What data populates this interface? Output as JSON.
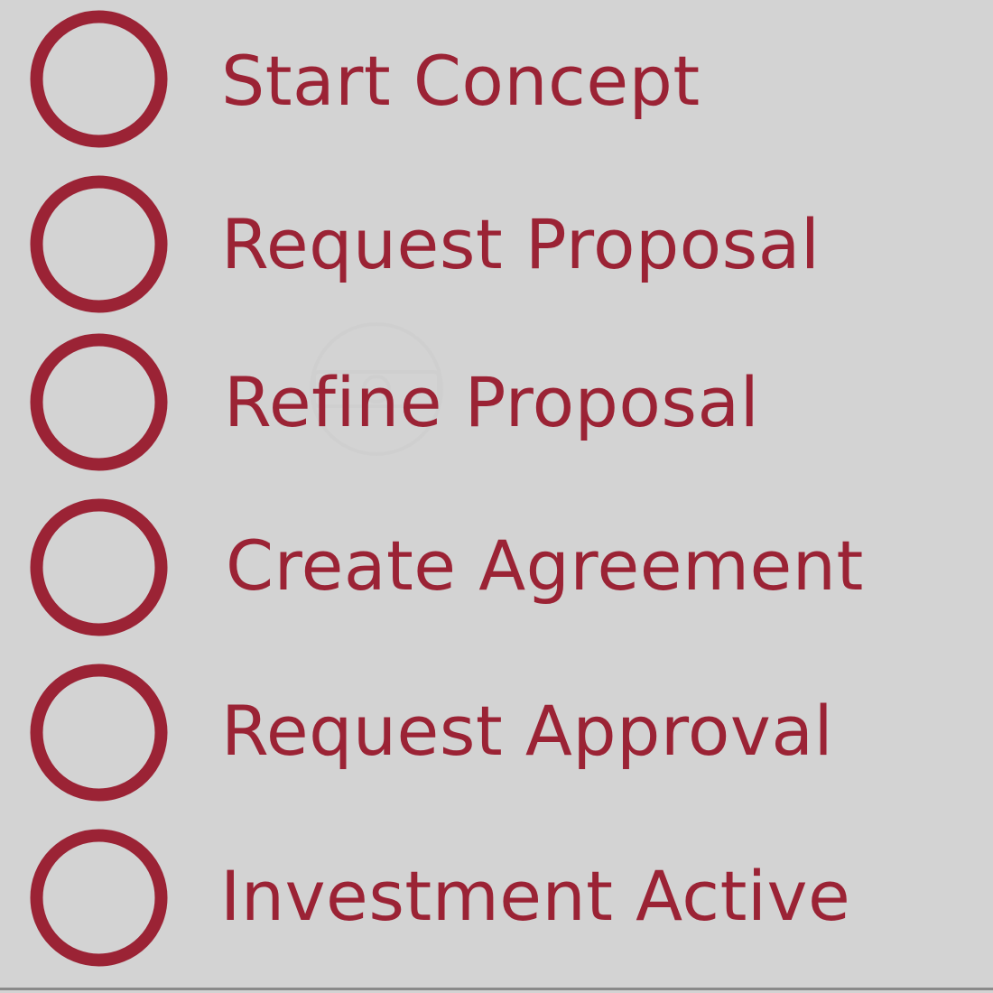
{
  "colors": {
    "background": "#d3d3d3",
    "accent": "#9b2335",
    "watermark": "#b8b8b8",
    "bottom_line": "#8a8a8a"
  },
  "icons": {
    "step_marker": "circle-outline-icon",
    "watermark": "watermark-logo-icon"
  },
  "steps": [
    {
      "label": "Start Concept"
    },
    {
      "label": "Request Proposal"
    },
    {
      "label": "Refine Proposal"
    },
    {
      "label": "Create Agreement"
    },
    {
      "label": "Request Approval"
    },
    {
      "label": "Investment Active"
    }
  ]
}
